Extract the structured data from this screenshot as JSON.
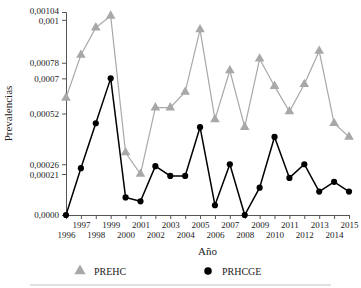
{
  "chart_data": {
    "type": "line",
    "x_label": "Año",
    "y_label": "Prevalencias",
    "x": [
      1996,
      1997,
      1998,
      1999,
      2000,
      2001,
      2002,
      2003,
      2004,
      2005,
      2006,
      2007,
      2008,
      2009,
      2010,
      2011,
      2012,
      2013,
      2014,
      2015
    ],
    "xlim": [
      1996,
      2015
    ],
    "xticks": [
      1996,
      1997,
      1998,
      1999,
      2000,
      2001,
      2002,
      2003,
      2004,
      2005,
      2006,
      2007,
      2008,
      2009,
      2010,
      2011,
      2012,
      2013,
      2014,
      2015
    ],
    "ylim": [
      0,
      0.00104
    ],
    "yticks": [
      {
        "value": 0,
        "label": "0,0000"
      },
      {
        "value": 0.00021,
        "label": "0,00021"
      },
      {
        "value": 0.00026,
        "label": "0,00026"
      },
      {
        "value": 0.00052,
        "label": "0,00052"
      },
      {
        "value": 0.0007,
        "label": "0,0007"
      },
      {
        "value": 0.00078,
        "label": "0,00078"
      },
      {
        "value": 0.001,
        "label": "0,001"
      },
      {
        "value": 0.00104,
        "label": "0,00104"
      }
    ],
    "grid": false,
    "legend": "bottom",
    "series": [
      {
        "name": "PREHC",
        "color": "#a8a8a8",
        "marker": "triangle",
        "values": [
          0.0006,
          0.00082,
          0.00096,
          0.00102,
          0.00032,
          0.00021,
          0.00055,
          0.00055,
          0.00063,
          0.00095,
          0.00049,
          0.00074,
          0.00045,
          0.0008,
          0.00066,
          0.00053,
          0.00067,
          0.00084,
          0.00047,
          0.0004
        ]
      },
      {
        "name": "PRHCGE",
        "color": "#000000",
        "marker": "circle",
        "values": [
          0,
          0.00024,
          0.00047,
          0.0007,
          9e-05,
          7e-05,
          0.00025,
          0.0002,
          0.0002,
          0.00045,
          5e-05,
          0.00026,
          0,
          0.00014,
          0.0004,
          0.00019,
          0.00026,
          0.00012,
          0.00017,
          0.00012
        ]
      }
    ]
  }
}
